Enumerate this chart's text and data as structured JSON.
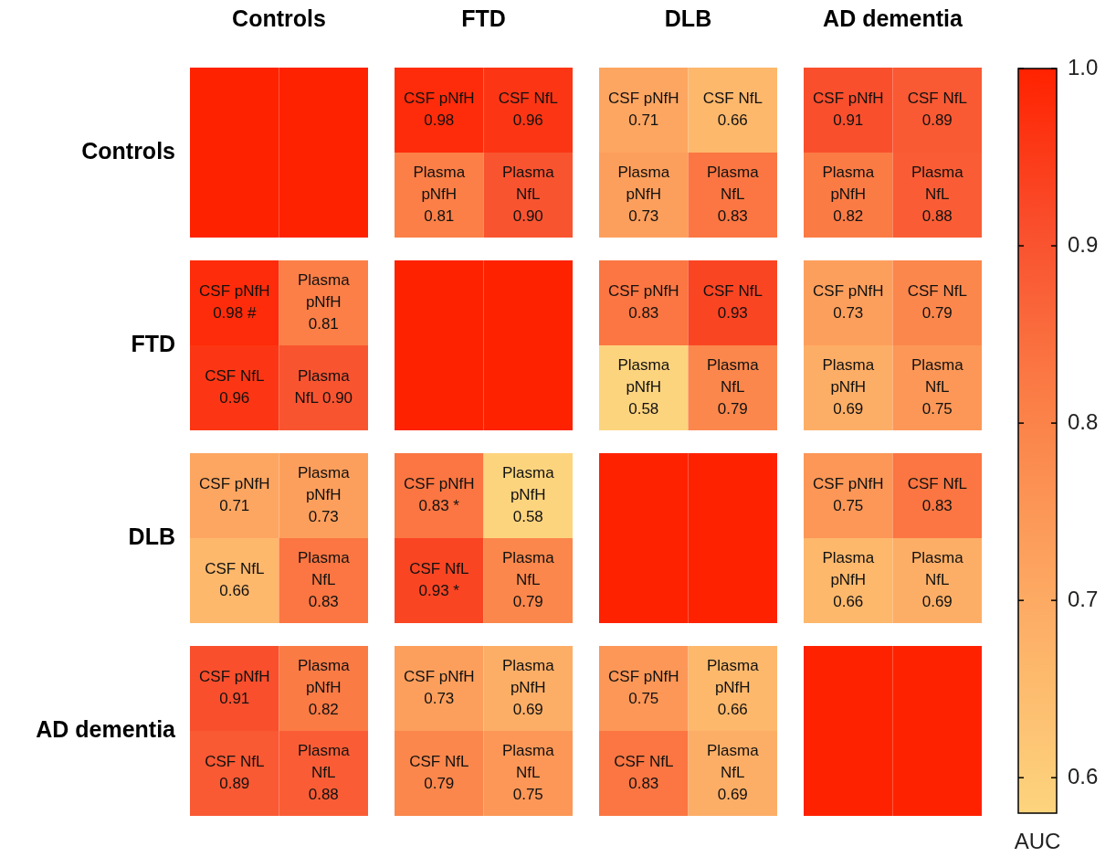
{
  "chart_data": {
    "type": "heatmap",
    "categories": [
      null,
      null,
      null,
      null,
      null,
      null,
      null,
      null
    ],
    "y_categories": [
      null,
      null,
      null,
      null,
      null,
      null,
      null,
      null
    ],
    "cells": [
      [
        1.0,
        1.0,
        0.98,
        0.96,
        0.71,
        0.66,
        0.91,
        0.89
      ],
      [
        1.0,
        1.0,
        0.81,
        0.9,
        0.73,
        0.83,
        0.82,
        0.88
      ],
      [
        0.98,
        0.81,
        1.0,
        1.0,
        0.83,
        0.93,
        0.73,
        0.79
      ],
      [
        0.96,
        0.9,
        1.0,
        1.0,
        0.58,
        0.79,
        0.69,
        0.75
      ],
      [
        0.71,
        0.73,
        0.83,
        0.58,
        1.0,
        1.0,
        0.75,
        0.83
      ],
      [
        0.66,
        0.83,
        0.93,
        0.79,
        1.0,
        1.0,
        0.66,
        0.69
      ],
      [
        0.91,
        0.82,
        0.73,
        0.69,
        0.75,
        0.66,
        1.0,
        1.0
      ],
      [
        0.89,
        0.88,
        0.79,
        0.75,
        0.83,
        0.69,
        1.0,
        1.0
      ]
    ],
    "cell_labels": [
      [
        null,
        null,
        "CSF pNfH\n0.98",
        "CSF NfL\n0.96",
        "CSF pNfH\n0.71",
        "CSF NfL\n0.66",
        "CSF pNfH\n0.91",
        "CSF NfL\n0.89"
      ],
      [
        null,
        null,
        "Plasma\npNfH\n0.81",
        "Plasma\nNfL\n0.90",
        "Plasma\npNfH\n0.73",
        "Plasma\nNfL\n0.83",
        "Plasma\npNfH\n0.82",
        "Plasma\nNfL\n0.88"
      ],
      [
        "CSF pNfH\n0.98 #",
        "Plasma\npNfH\n0.81",
        null,
        null,
        "CSF pNfH\n0.83",
        "CSF NfL\n0.93",
        "CSF pNfH\n0.73",
        "CSF NfL\n0.79"
      ],
      [
        "CSF NfL\n0.96",
        "Plasma\nNfL 0.90",
        null,
        null,
        "Plasma\npNfH\n0.58",
        "Plasma\nNfL\n0.79",
        "Plasma\npNfH\n0.69",
        "Plasma\nNfL\n0.75"
      ],
      [
        "CSF pNfH\n0.71",
        "Plasma\npNfH\n0.73",
        "CSF pNfH\n0.83 *",
        "Plasma\npNfH\n0.58",
        null,
        null,
        "CSF pNfH\n0.75",
        "CSF NfL\n0.83"
      ],
      [
        "CSF NfL\n0.66",
        "Plasma\nNfL\n0.83",
        "CSF NfL\n0.93 *",
        "Plasma\nNfL\n0.79",
        null,
        null,
        "Plasma\npNfH\n0.66",
        "Plasma\nNfL\n0.69"
      ],
      [
        "CSF pNfH\n0.91",
        "Plasma\npNfH\n0.82",
        "CSF pNfH\n0.73",
        "Plasma\npNfH\n0.69",
        "CSF pNfH\n0.75",
        "Plasma\npNfH\n0.66",
        null,
        null
      ],
      [
        "CSF NfL\n0.89",
        "Plasma\nNfL\n0.88",
        "CSF NfL\n0.79",
        "Plasma\nNfL\n0.75",
        "CSF NfL\n0.83",
        "Plasma\nNfL\n0.69",
        null,
        null
      ]
    ],
    "clim": [
      0.58,
      1.0
    ],
    "cticks": [
      0.6,
      0.7,
      0.8,
      0.9,
      {
        "value": 1.0,
        "label": "1.0"
      }
    ],
    "clabel": "AUC",
    "annotations": [
      "Controls",
      "FTD",
      "DLB",
      "AD dementia",
      "Controls",
      "FTD",
      "DLB",
      "AD dementia"
    ]
  }
}
